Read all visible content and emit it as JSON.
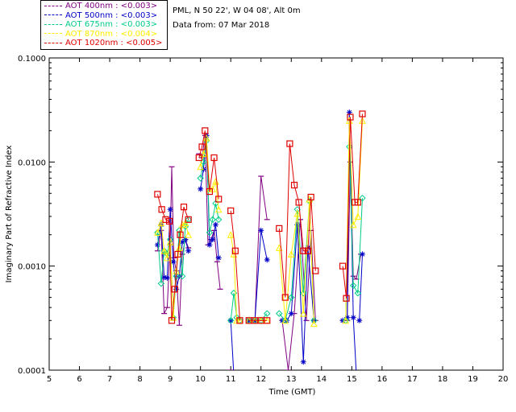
{
  "header": {
    "site": "PML, N 50 22', W 04 08', Alt 0m",
    "date": "Data from: 07 Mar 2018"
  },
  "chart_data": {
    "type": "line",
    "title": "",
    "xlabel": "Time (GMT)",
    "ylabel": "Imaginary Part of Refractive Index",
    "xlim": [
      5,
      20
    ],
    "ylim": [
      0.0001,
      0.1
    ],
    "yscale": "log",
    "xticks": [
      5,
      6,
      7,
      8,
      9,
      10,
      11,
      12,
      13,
      14,
      15,
      16,
      17,
      18,
      19,
      20
    ],
    "yticks": [
      {
        "value": 0.0001,
        "label": "0.0001"
      },
      {
        "value": 0.001,
        "label": "0.0010"
      },
      {
        "value": 0.01,
        "label": "0.0100"
      },
      {
        "value": 0.1,
        "label": "0.1000"
      }
    ],
    "grid": false,
    "legend_position": "top-left",
    "series": [
      {
        "name": "AOT  400nm : <0.003>",
        "color": "#800080",
        "marker": "dash",
        "segments": [
          [
            [
              8.58,
              0.0014
            ],
            [
              8.7,
              0.0022
            ],
            [
              8.8,
              0.00035
            ],
            [
              8.9,
              0.0004
            ],
            [
              9.0,
              0.0016
            ],
            [
              9.05,
              0.009
            ],
            [
              9.12,
              0.0012
            ],
            [
              9.2,
              0.0009
            ],
            [
              9.3,
              0.00027
            ],
            [
              9.4,
              0.0013
            ],
            [
              9.5,
              0.0018
            ],
            [
              9.6,
              0.0015
            ]
          ],
          [
            [
              9.95,
              0.012
            ],
            [
              10.05,
              0.011
            ],
            [
              10.15,
              0.018
            ],
            [
              10.25,
              0.0016
            ],
            [
              10.35,
              0.0018
            ],
            [
              10.45,
              0.0022
            ],
            [
              10.55,
              0.0011
            ],
            [
              10.65,
              0.0006
            ]
          ],
          [
            [
              11.0,
              0.0001
            ],
            [
              11.1,
              9e-05
            ]
          ],
          [
            [
              11.8,
              0.0003
            ],
            [
              12.0,
              0.0073
            ],
            [
              12.2,
              0.0028
            ]
          ],
          [
            [
              12.7,
              0.0003
            ],
            [
              12.9,
              0.0001
            ],
            [
              13.1,
              0.00035
            ],
            [
              13.3,
              0.0028
            ],
            [
              13.5,
              0.0003
            ],
            [
              13.65,
              0.0022
            ],
            [
              13.8,
              0.0003
            ]
          ],
          [
            [
              14.7,
              0.0003
            ],
            [
              14.85,
              0.0003
            ],
            [
              14.95,
              0.01
            ],
            [
              15.05,
              0.0008
            ],
            [
              15.15,
              0.00075
            ],
            [
              15.3,
              0.0013
            ]
          ]
        ]
      },
      {
        "name": "AOT  500nm : <0.003>",
        "color": "#0000c8",
        "marker": "star",
        "segments": [
          [
            [
              8.58,
              0.0016
            ],
            [
              8.7,
              0.0025
            ],
            [
              8.8,
              0.00078
            ],
            [
              8.9,
              0.00077
            ],
            [
              9.0,
              0.0035
            ],
            [
              9.1,
              0.0011
            ],
            [
              9.2,
              0.0006
            ],
            [
              9.3,
              0.0008
            ],
            [
              9.4,
              0.0017
            ],
            [
              9.5,
              0.0018
            ],
            [
              9.6,
              0.0014
            ]
          ],
          [
            [
              10.0,
              0.0055
            ],
            [
              10.1,
              0.0085
            ],
            [
              10.2,
              0.018
            ],
            [
              10.3,
              0.0016
            ],
            [
              10.4,
              0.0018
            ],
            [
              10.5,
              0.0025
            ],
            [
              10.6,
              0.0012
            ]
          ],
          [
            [
              11.0,
              0.0003
            ],
            [
              11.1,
              9e-05
            ]
          ],
          [
            [
              11.6,
              0.0003
            ],
            [
              11.8,
              0.0003
            ],
            [
              12.0,
              0.0022
            ],
            [
              12.2,
              0.00115
            ]
          ],
          [
            [
              12.7,
              0.0003
            ],
            [
              12.85,
              0.0003
            ],
            [
              13.0,
              0.00035
            ],
            [
              13.2,
              0.0025
            ],
            [
              13.4,
              0.00012
            ],
            [
              13.55,
              0.0015
            ],
            [
              13.75,
              0.0003
            ]
          ],
          [
            [
              14.7,
              0.0003
            ],
            [
              14.85,
              0.00032
            ],
            [
              14.92,
              0.03
            ],
            [
              15.05,
              0.00032
            ],
            [
              15.15,
              9e-05
            ]
          ],
          [
            [
              15.25,
              0.0003
            ],
            [
              15.35,
              0.0013
            ]
          ]
        ]
      },
      {
        "name": "AOT  675nm : <0.003>",
        "color": "#00cc88",
        "marker": "diamond",
        "segments": [
          [
            [
              8.58,
              0.0021
            ],
            [
              8.7,
              0.00068
            ],
            [
              8.8,
              0.0014
            ],
            [
              8.9,
              0.0013
            ],
            [
              9.0,
              0.0018
            ],
            [
              9.1,
              0.00032
            ],
            [
              9.2,
              0.0008
            ],
            [
              9.3,
              0.0022
            ],
            [
              9.4,
              0.0008
            ],
            [
              9.5,
              0.0024
            ],
            [
              9.6,
              0.0028
            ]
          ],
          [
            [
              10.0,
              0.007
            ],
            [
              10.1,
              0.01
            ],
            [
              10.2,
              0.016
            ],
            [
              10.3,
              0.0021
            ],
            [
              10.4,
              0.0028
            ],
            [
              10.5,
              0.004
            ],
            [
              10.6,
              0.0028
            ]
          ],
          [
            [
              11.0,
              0.0003
            ],
            [
              11.1,
              0.00055
            ],
            [
              11.2,
              0.00032
            ],
            [
              11.3,
              0.0003
            ]
          ],
          [
            [
              11.6,
              0.0003
            ],
            [
              11.8,
              0.0003
            ],
            [
              12.0,
              0.0003
            ],
            [
              12.2,
              0.00035
            ]
          ],
          [
            [
              12.6,
              0.00035
            ],
            [
              12.8,
              0.0003
            ],
            [
              13.0,
              0.0005
            ],
            [
              13.2,
              0.0035
            ],
            [
              13.4,
              0.00055
            ],
            [
              13.6,
              0.0042
            ],
            [
              13.75,
              0.0003
            ]
          ],
          [
            [
              14.8,
              0.0003
            ],
            [
              14.92,
              0.014
            ],
            [
              15.05,
              0.00065
            ],
            [
              15.2,
              0.00055
            ],
            [
              15.35,
              0.0045
            ]
          ]
        ]
      },
      {
        "name": "AOT  870nm : <0.004>",
        "color": "#ffee00",
        "marker": "triangle",
        "segments": [
          [
            [
              8.58,
              0.0021
            ],
            [
              8.7,
              0.0026
            ],
            [
              8.8,
              0.0014
            ],
            [
              8.9,
              0.0012
            ],
            [
              9.0,
              0.0017
            ],
            [
              9.1,
              0.00032
            ],
            [
              9.2,
              0.0009
            ],
            [
              9.3,
              0.0015
            ],
            [
              9.4,
              0.0025
            ],
            [
              9.5,
              0.0026
            ],
            [
              9.6,
              0.002
            ]
          ],
          [
            [
              10.0,
              0.009
            ],
            [
              10.1,
              0.012
            ],
            [
              10.2,
              0.017
            ],
            [
              10.3,
              0.0055
            ],
            [
              10.4,
              0.0055
            ],
            [
              10.5,
              0.0065
            ],
            [
              10.6,
              0.0035
            ]
          ],
          [
            [
              11.0,
              0.002
            ],
            [
              11.1,
              0.0013
            ],
            [
              11.2,
              0.0003
            ],
            [
              11.3,
              0.0003
            ]
          ],
          [
            [
              11.6,
              0.0003
            ],
            [
              11.8,
              0.0003
            ],
            [
              12.0,
              0.0003
            ],
            [
              12.2,
              0.0003
            ]
          ],
          [
            [
              12.6,
              0.0015
            ],
            [
              12.8,
              0.0003
            ],
            [
              13.0,
              0.0013
            ],
            [
              13.2,
              0.0032
            ],
            [
              13.4,
              0.00035
            ],
            [
              13.6,
              0.0044
            ],
            [
              13.75,
              0.00028
            ]
          ],
          [
            [
              14.8,
              0.0003
            ],
            [
              14.92,
              0.025
            ],
            [
              15.05,
              0.0025
            ],
            [
              15.2,
              0.003
            ],
            [
              15.35,
              0.025
            ]
          ]
        ]
      },
      {
        "name": "AOT 1020nm : <0.005>",
        "color": "#e00000",
        "marker": "square",
        "segments": [
          [
            [
              8.58,
              0.0049
            ],
            [
              8.72,
              0.0035
            ],
            [
              8.85,
              0.0028
            ],
            [
              8.97,
              0.0027
            ],
            [
              9.05,
              0.0003
            ],
            [
              9.15,
              0.0006
            ],
            [
              9.25,
              0.0013
            ],
            [
              9.33,
              0.002
            ],
            [
              9.45,
              0.0037
            ],
            [
              9.6,
              0.0028
            ]
          ],
          [
            [
              9.95,
              0.011
            ],
            [
              10.05,
              0.014
            ],
            [
              10.15,
              0.02
            ],
            [
              10.3,
              0.0052
            ],
            [
              10.45,
              0.011
            ],
            [
              10.6,
              0.0044
            ]
          ],
          [
            [
              11.0,
              0.0034
            ],
            [
              11.15,
              0.0014
            ],
            [
              11.3,
              0.0003
            ]
          ],
          [
            [
              11.6,
              0.0003
            ],
            [
              11.8,
              0.0003
            ],
            [
              12.0,
              0.0003
            ],
            [
              12.2,
              0.0003
            ]
          ],
          [
            [
              12.6,
              0.0023
            ],
            [
              12.8,
              0.0005
            ],
            [
              12.95,
              0.015
            ],
            [
              13.1,
              0.006
            ],
            [
              13.25,
              0.0041
            ],
            [
              13.4,
              0.0014
            ],
            [
              13.55,
              0.0014
            ],
            [
              13.65,
              0.0046
            ],
            [
              13.8,
              0.0009
            ]
          ],
          [
            [
              14.7,
              0.001
            ],
            [
              14.82,
              0.00049
            ],
            [
              14.95,
              0.027
            ],
            [
              15.1,
              0.0041
            ],
            [
              15.2,
              0.0041
            ],
            [
              15.35,
              0.029
            ]
          ]
        ]
      }
    ]
  }
}
